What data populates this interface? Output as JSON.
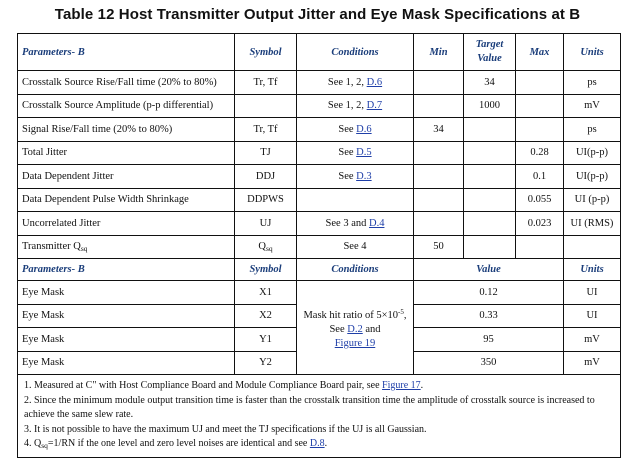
{
  "title": "Table 12  Host Transmitter Output Jitter and Eye Mask Specifications at B",
  "header": {
    "parameters": "Parameters- B",
    "symbol": "Symbol",
    "conditions": "Conditions",
    "min": "Min",
    "target_line1": "Target",
    "target_line2": "Value",
    "max": "Max",
    "units": "Units"
  },
  "rows": [
    {
      "param": "Crosstalk Source Rise/Fall time (20% to 80%)",
      "symbol": "Tr, Tf",
      "cond_pre": "See 1, 2, ",
      "cond_link": "D.6",
      "min": "",
      "target": "34",
      "max": "",
      "units": "ps"
    },
    {
      "param": "Crosstalk Source Amplitude (p-p differential)",
      "symbol": "",
      "cond_pre": "See 1, 2, ",
      "cond_link": "D.7",
      "min": "",
      "target": "1000",
      "max": "",
      "units": "mV"
    },
    {
      "param": "Signal Rise/Fall time (20% to 80%)",
      "symbol": "Tr, Tf",
      "cond_pre": "See ",
      "cond_link": "D.6",
      "min": "34",
      "target": "",
      "max": "",
      "units": "ps"
    },
    {
      "param": "Total Jitter",
      "symbol": "TJ",
      "cond_pre": "See ",
      "cond_link": "D.5",
      "min": "",
      "target": "",
      "max": "0.28",
      "units": "UI(p-p)"
    },
    {
      "param": "Data Dependent Jitter",
      "symbol": "DDJ",
      "cond_pre": "See ",
      "cond_link": "D.3",
      "min": "",
      "target": "",
      "max": "0.1",
      "units": "UI(p-p)"
    },
    {
      "param": "Data Dependent Pulse Width Shrinkage",
      "symbol": "DDPWS",
      "cond_pre": "",
      "cond_link": "",
      "min": "",
      "target": "",
      "max": "0.055",
      "units": "UI (p-p)"
    },
    {
      "param": "Uncorrelated Jitter",
      "symbol": "UJ",
      "cond_pre": "See 3 and ",
      "cond_link": "D.4",
      "min": "",
      "target": "",
      "max": "0.023",
      "units": "UI (RMS)"
    }
  ],
  "qsq_row": {
    "param": "Transmitter Q",
    "param_sub": "sq",
    "symbol": "Q",
    "symbol_sub": "sq",
    "cond": "See 4",
    "min": "50"
  },
  "header2": {
    "parameters": "Parameters- B",
    "symbol": "Symbol",
    "conditions": "Conditions",
    "value": "Value",
    "units": "Units"
  },
  "eye_rows": [
    {
      "param": "Eye Mask",
      "symbol": "X1",
      "value": "0.12",
      "units": "UI"
    },
    {
      "param": "Eye Mask",
      "symbol": "X2",
      "value": "0.33",
      "units": "UI"
    },
    {
      "param": "Eye Mask",
      "symbol": "Y1",
      "value": "95",
      "units": "mV"
    },
    {
      "param": "Eye Mask",
      "symbol": "Y2",
      "value": "350",
      "units": "mV"
    }
  ],
  "mask_cond": {
    "line1": "Mask hit ratio of 5×10",
    "exp": "-5",
    "line1_end": ",",
    "line2_pre": "See ",
    "line2_link": "D.2",
    "line2_post": " and",
    "line3_link": "Figure 19"
  },
  "notes": {
    "n1_pre": "1. Measured at C\" with Host Compliance Board and Module Compliance Board pair, see ",
    "n1_link": "Figure 17",
    "n1_post": ".",
    "n2": "2. Since the minimum module output transition time is faster than the crosstalk transition time the amplitude of crosstalk source is increased to achieve the same slew rate.",
    "n3": "3. It is not possible to have the maximum UJ and meet the TJ specifications if the UJ is all Gaussian.",
    "n4_pre": "4. Q",
    "n4_sub": "sq",
    "n4_mid": "=1/RN if the one level and zero level noises are identical and see ",
    "n4_link": "D.8",
    "n4_post": "."
  }
}
